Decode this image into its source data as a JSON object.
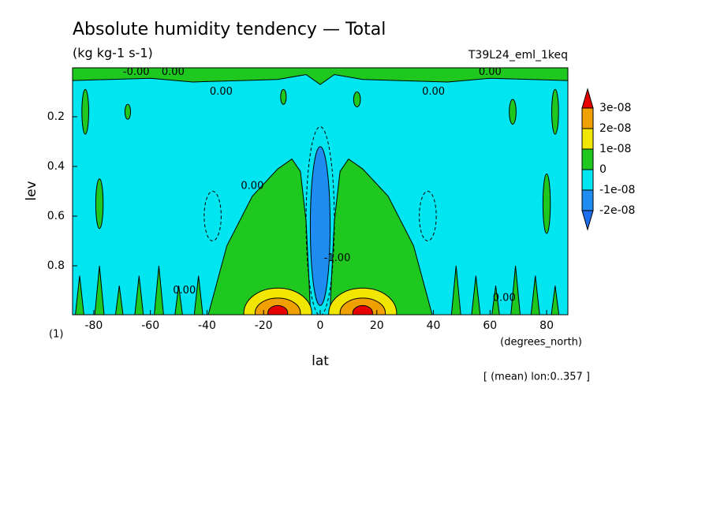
{
  "chart_data": {
    "type": "contour",
    "title": "Absolute humidity tendency — Total",
    "subtitle": "(kg kg-1 s-1)",
    "run_label": "T39L24_eml_1keq",
    "panel_label": "(1)",
    "x_label": "lat",
    "x_units": "(degrees_north)",
    "y_label": "lev",
    "note": "[ (mean) lon:0..357 ]",
    "xlim": [
      -87.5,
      87.5
    ],
    "xticks": [
      -80,
      -60,
      -40,
      -20,
      0,
      20,
      40,
      60,
      80
    ],
    "ylim": [
      0.003,
      0.997
    ],
    "y_reversed": true,
    "yticks": [
      0.2,
      0.4,
      0.6,
      0.8
    ],
    "levels": [
      {
        "value": 3e-08,
        "label": "3e-08"
      },
      {
        "value": 2e-08,
        "label": "2e-08"
      },
      {
        "value": 1e-08,
        "label": "1e-08"
      },
      0,
      {
        "value": -1e-08,
        "label": "-1e-08"
      },
      {
        "value": -2e-08,
        "label": "-2e-08"
      }
    ],
    "colors": [
      "#e60000",
      "#f0a000",
      "#f0e600",
      "#1ec81e",
      "#00e6f0",
      "#1e8cf0",
      "#1e6ef0"
    ],
    "contour_labels": [
      "0.00",
      "0.00",
      "0.00",
      "0.00",
      "0.00",
      "0.00",
      "0.00",
      "-0.00",
      "-1.00"
    ]
  }
}
